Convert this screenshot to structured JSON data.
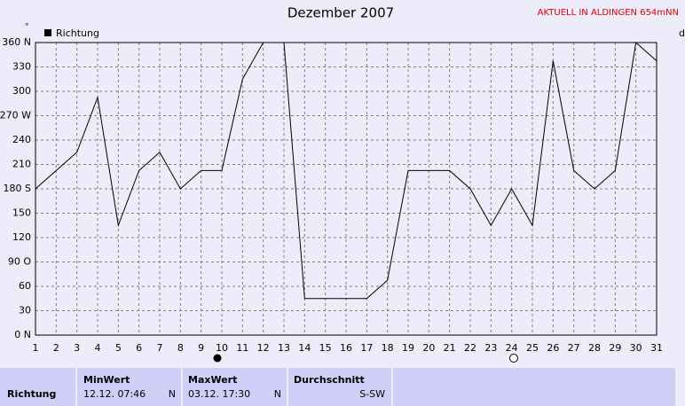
{
  "chart_data": {
    "type": "line",
    "title": "Dezember 2007",
    "subtitle": "AKTUELL IN ALDINGEN 654mNN",
    "ylabel": "°",
    "xlabel": "d",
    "x": [
      1,
      2,
      3,
      4,
      5,
      6,
      7,
      8,
      9,
      10,
      11,
      12,
      13,
      14,
      15,
      16,
      17,
      18,
      19,
      20,
      21,
      22,
      23,
      24,
      25,
      26,
      27,
      28,
      29,
      30,
      31
    ],
    "series": [
      {
        "name": "Richtung",
        "color": "#000000",
        "values": [
          180,
          202.5,
          225,
          292.5,
          135,
          202.5,
          225,
          180,
          202.5,
          202.5,
          315,
          360,
          360,
          45,
          45,
          45,
          45,
          67.5,
          202.5,
          202.5,
          202.5,
          180,
          135,
          180,
          135,
          337.5,
          202.5,
          180,
          202.5,
          360,
          337.5
        ]
      }
    ],
    "xlim": [
      1,
      31
    ],
    "xticks": [
      1,
      2,
      3,
      4,
      5,
      6,
      7,
      8,
      9,
      10,
      11,
      12,
      13,
      14,
      15,
      16,
      17,
      18,
      19,
      20,
      21,
      22,
      23,
      24,
      25,
      26,
      27,
      28,
      29,
      30,
      31
    ],
    "ylim": [
      0,
      360
    ],
    "yticks": [
      {
        "value": 0,
        "label": "0  N"
      },
      30,
      60,
      {
        "value": 90,
        "label": "90  O"
      },
      120,
      150,
      {
        "value": 180,
        "label": "180 S"
      },
      210,
      240,
      {
        "value": 270,
        "label": "270 W"
      },
      300,
      330,
      {
        "value": 360,
        "label": "360 N"
      }
    ],
    "grid": true
  },
  "summary": {
    "row_label": "Richtung",
    "columns": [
      {
        "header": "MinWert",
        "date": "12.12.  07:46",
        "value": "N"
      },
      {
        "header": "MaxWert",
        "date": "03.12.  17:30",
        "value": "N"
      },
      {
        "header": "Durchschnitt",
        "value": "S-SW"
      }
    ]
  }
}
